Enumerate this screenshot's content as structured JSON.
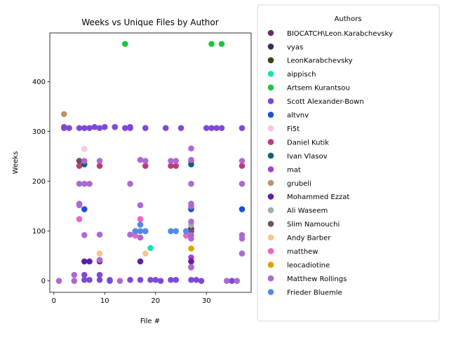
{
  "chart_data": {
    "type": "scatter",
    "title": "Weeks vs Unique Files by Author",
    "xlabel": "File #",
    "ylabel": "Weeks",
    "xlim": [
      -0.8,
      38.8
    ],
    "ylim": [
      -23,
      498
    ],
    "xticks": [
      0,
      10,
      20,
      30
    ],
    "yticks": [
      0,
      100,
      200,
      300,
      400
    ],
    "legend": {
      "title": "Authors",
      "placement": "outside-right"
    },
    "series": [
      {
        "name": "BIOCATCH\\Leon.Karabchevsky",
        "color": "#6b2d5e",
        "points": [
          [
            27,
            100
          ]
        ]
      },
      {
        "name": "vyas",
        "color": "#3b2f4a",
        "points": [
          [
            27,
            105
          ]
        ]
      },
      {
        "name": "LeonKarabchevsky",
        "color": "#2e4a14",
        "points": []
      },
      {
        "name": "aippisch",
        "color": "#19e0b4",
        "points": [
          [
            19,
            66
          ]
        ]
      },
      {
        "name": "Artsem Kurantsou",
        "color": "#1bc53d",
        "points": [
          [
            14,
            476
          ],
          [
            31,
            476
          ],
          [
            33,
            476
          ]
        ]
      },
      {
        "name": "Scott Alexander-Bown",
        "color": "#7e49d6",
        "points": [
          [
            2,
            309
          ],
          [
            2,
            307
          ],
          [
            3,
            307
          ],
          [
            5,
            307
          ],
          [
            6,
            307
          ],
          [
            7,
            307
          ],
          [
            8,
            309
          ],
          [
            9,
            307
          ],
          [
            10,
            309
          ],
          [
            12,
            309
          ],
          [
            14,
            307
          ],
          [
            15,
            307
          ],
          [
            15,
            309
          ],
          [
            18,
            307
          ],
          [
            22,
            307
          ],
          [
            25,
            307
          ],
          [
            30,
            307
          ],
          [
            31,
            307
          ],
          [
            32,
            307
          ],
          [
            33,
            307
          ],
          [
            37,
            307
          ],
          [
            6,
            2
          ],
          [
            6,
            12
          ],
          [
            7,
            2
          ],
          [
            9,
            2
          ],
          [
            9,
            12
          ],
          [
            11,
            2
          ],
          [
            11,
            0
          ],
          [
            15,
            2
          ],
          [
            17,
            2
          ],
          [
            19,
            2
          ],
          [
            20,
            2
          ],
          [
            21,
            0
          ],
          [
            23,
            2
          ],
          [
            24,
            2
          ],
          [
            27,
            2
          ],
          [
            28,
            2
          ],
          [
            29,
            0
          ],
          [
            35,
            0
          ]
        ]
      },
      {
        "name": "altvnv",
        "color": "#1f4fd6",
        "points": [
          [
            6,
            144
          ],
          [
            27,
            144
          ],
          [
            37,
            144
          ]
        ]
      },
      {
        "name": "Fi5t",
        "color": "#f5c6e5",
        "points": [
          [
            6,
            265
          ]
        ]
      },
      {
        "name": "Daniel Kutik",
        "color": "#c03a78",
        "points": [
          [
            5,
            241
          ],
          [
            5,
            231
          ],
          [
            9,
            231
          ],
          [
            18,
            231
          ],
          [
            23,
            231
          ],
          [
            24,
            231
          ],
          [
            27,
            241
          ],
          [
            37,
            231
          ]
        ]
      },
      {
        "name": "Ivan Vlasov",
        "color": "#10607a",
        "points": [
          [
            6,
            234
          ],
          [
            27,
            234
          ]
        ]
      },
      {
        "name": "mat",
        "color": "#a043c8",
        "points": [
          [
            27,
            47
          ]
        ]
      },
      {
        "name": "grubeli",
        "color": "#bc9469",
        "points": [
          [
            2,
            335
          ]
        ]
      },
      {
        "name": "Mohammed Ezzat",
        "color": "#5e1ea8",
        "points": [
          [
            6,
            39
          ],
          [
            7,
            39
          ],
          [
            9,
            39
          ],
          [
            17,
            39
          ],
          [
            27,
            39
          ]
        ]
      },
      {
        "name": "Ali Waseem",
        "color": "#b0a8a8",
        "points": [
          [
            27,
            112
          ]
        ]
      },
      {
        "name": "Slim Namouchi",
        "color": "#734c66",
        "points": [
          [
            5,
            241
          ],
          [
            27,
            100
          ]
        ]
      },
      {
        "name": "Andy Barber",
        "color": "#f7c48a",
        "points": [
          [
            9,
            55
          ],
          [
            18,
            55
          ],
          [
            37,
            55
          ]
        ]
      },
      {
        "name": "matthew",
        "color": "#ee62c9",
        "points": [
          [
            5,
            124
          ],
          [
            16,
            91
          ],
          [
            17,
            124
          ],
          [
            26,
            91
          ]
        ]
      },
      {
        "name": "leocadiotine",
        "color": "#e0a000",
        "points": [
          [
            27,
            65
          ]
        ]
      },
      {
        "name": "Matthew Rollings",
        "color": "#ad69d1",
        "points": [
          [
            1,
            0
          ],
          [
            4,
            0
          ],
          [
            4,
            12
          ],
          [
            5,
            195
          ],
          [
            5,
            155
          ],
          [
            5,
            152
          ],
          [
            6,
            195
          ],
          [
            6,
            241
          ],
          [
            6,
            92
          ],
          [
            7,
            195
          ],
          [
            9,
            241
          ],
          [
            9,
            93
          ],
          [
            9,
            42
          ],
          [
            13,
            0
          ],
          [
            15,
            195
          ],
          [
            15,
            93
          ],
          [
            17,
            243
          ],
          [
            17,
            152
          ],
          [
            17,
            87
          ],
          [
            18,
            241
          ],
          [
            23,
            241
          ],
          [
            24,
            241
          ],
          [
            27,
            266
          ],
          [
            27,
            243
          ],
          [
            27,
            195
          ],
          [
            27,
            155
          ],
          [
            27,
            150
          ],
          [
            27,
            119
          ],
          [
            27,
            92
          ],
          [
            27,
            85
          ],
          [
            27,
            28
          ],
          [
            27,
            27
          ],
          [
            34,
            0
          ],
          [
            36,
            0
          ],
          [
            37,
            241
          ],
          [
            37,
            195
          ],
          [
            37,
            92
          ],
          [
            37,
            85
          ],
          [
            37,
            55
          ]
        ]
      },
      {
        "name": "Frieder Bluemle",
        "color": "#4f8ce8",
        "points": [
          [
            16,
            100
          ],
          [
            17,
            100
          ],
          [
            17,
            113
          ],
          [
            18,
            100
          ],
          [
            23,
            100
          ],
          [
            24,
            100
          ],
          [
            26,
            100
          ]
        ]
      }
    ]
  }
}
